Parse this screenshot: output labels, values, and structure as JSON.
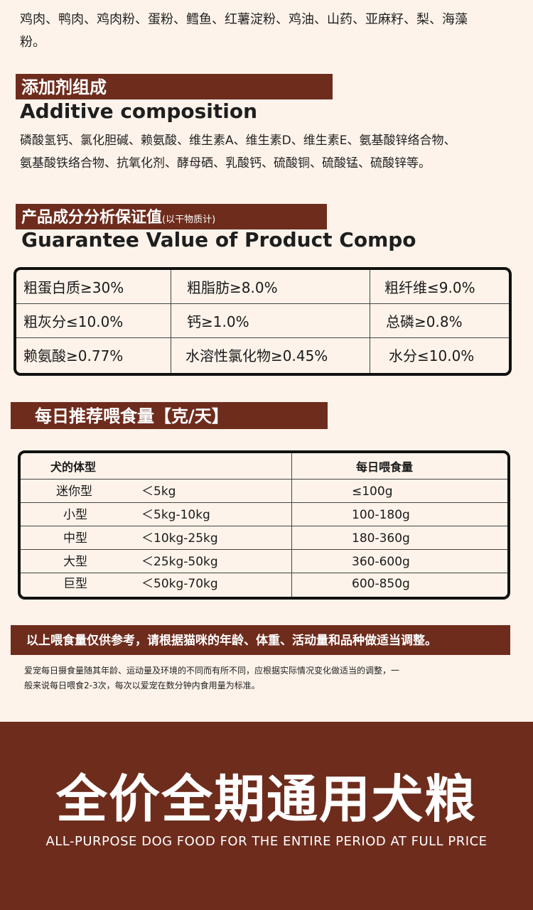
{
  "ingredients": {
    "line1": "鸡肉、鸭肉、鸡肉粉、蛋粉、鳕鱼、红薯淀粉、鸡油、山药、亚麻籽、梨、海藻",
    "line2": "粉。"
  },
  "additive": {
    "title_cn": "添加剂组成",
    "title_en": "Additive composition",
    "line1": "磷酸氢钙、氯化胆碱、赖氨酸、维生素A、维生素D、维生素E、氨基酸锌络合物、",
    "line2": "氨基酸铁络合物、抗氧化剂、酵母硒、乳酸钙、硫酸铜、硫酸锰、硫酸锌等。"
  },
  "guarantee": {
    "title_cn": "产品成分分析保证值",
    "title_note": "(以干物质计)",
    "title_en": "Guarantee Value of Product Compo",
    "rows": [
      [
        "粗蛋白质≥30%",
        "粗脂肪≥8.0%",
        "粗纤维≤9.0%"
      ],
      [
        "粗灰分≤10.0%",
        "钙≥1.0%",
        "总磷≥0.8%"
      ],
      [
        "赖氨酸≥0.77%",
        "水溶性氯化物≥0.45%",
        "水分≤10.0%"
      ]
    ]
  },
  "daily": {
    "title": "每日推荐喂食量【克/天】",
    "header_type": "犬的体型",
    "header_amount": "每日喂食量",
    "rows": [
      {
        "type": "迷你型",
        "weight": "＜5kg",
        "amount": "≤100g"
      },
      {
        "type": "小型",
        "weight": "＜5kg-10kg",
        "amount": "100-180g"
      },
      {
        "type": "中型",
        "weight": "＜10kg-25kg",
        "amount": "180-360g"
      },
      {
        "type": "大型",
        "weight": "＜25kg-50kg",
        "amount": "360-600g"
      },
      {
        "type": "巨型",
        "weight": "＜50kg-70kg",
        "amount": "600-850g"
      }
    ]
  },
  "note": {
    "banner": "以上喂食量仅供参考，请根据猫咪的年龄、体重、活动量和品种做适当调整。",
    "line1": "爱宠每日摄食量随其年龄、运动量及环境的不同而有所不同，应根据实际情况变化做适当的调整，一",
    "line2": "般来说每日喂食2-3次，每次以爱宠在数分钟内食用量为标准。"
  },
  "footer": {
    "title": "全价全期通用犬粮",
    "subtitle": "ALL-PURPOSE DOG FOOD FOR THE ENTIRE PERIOD AT FULL PRICE"
  },
  "colors": {
    "brand_brown": "#6e2c1d",
    "page_background": "#fdf3ea"
  }
}
